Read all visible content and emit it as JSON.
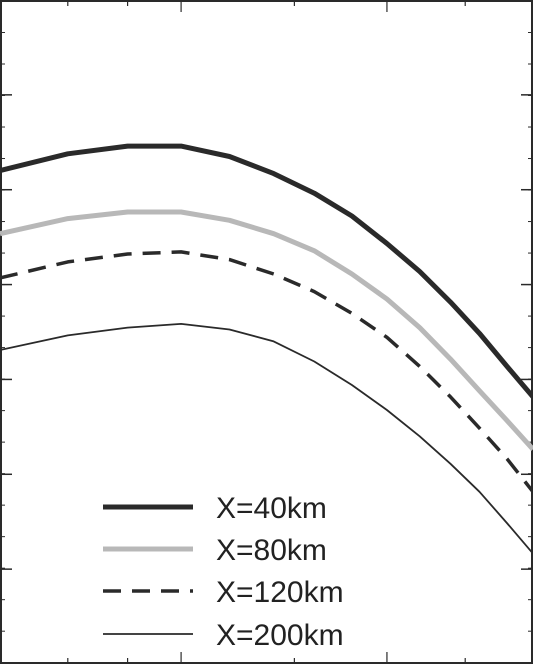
{
  "chart_data": {
    "type": "line",
    "title": "",
    "xlabel": "",
    "ylabel": "",
    "x_scale": "log",
    "y_scale": "log",
    "xlim": [
      0.7,
      2.0
    ],
    "ylim": [
      0.0625,
      8
    ],
    "grid": false,
    "legend_position": "bottom-right",
    "x": [
      0.7,
      0.8,
      0.9,
      1.0,
      1.1,
      1.2,
      1.3,
      1.4,
      1.5,
      1.6,
      1.7,
      1.8,
      1.9,
      2.0
    ],
    "series": [
      {
        "name": "X=40km",
        "color": "#2a2a2a",
        "style": "solid-thick",
        "values": [
          2.3,
          2.6,
          2.75,
          2.75,
          2.55,
          2.25,
          1.95,
          1.65,
          1.35,
          1.1,
          0.88,
          0.7,
          0.55,
          0.44
        ]
      },
      {
        "name": "X=80km",
        "color": "#b8b8b8",
        "style": "solid-thick",
        "values": [
          1.45,
          1.62,
          1.7,
          1.7,
          1.6,
          1.45,
          1.28,
          1.08,
          0.9,
          0.73,
          0.58,
          0.46,
          0.37,
          0.3
        ]
      },
      {
        "name": "X=120km",
        "color": "#2a2a2a",
        "style": "dashed",
        "values": [
          1.05,
          1.18,
          1.25,
          1.27,
          1.2,
          1.08,
          0.95,
          0.81,
          0.68,
          0.55,
          0.44,
          0.35,
          0.28,
          0.22
        ]
      },
      {
        "name": "X=200km",
        "color": "#2a2a2a",
        "style": "solid-thin",
        "values": [
          0.62,
          0.69,
          0.73,
          0.75,
          0.72,
          0.66,
          0.57,
          0.48,
          0.4,
          0.33,
          0.27,
          0.22,
          0.175,
          0.14
        ]
      }
    ]
  }
}
